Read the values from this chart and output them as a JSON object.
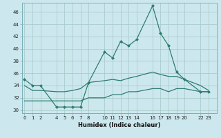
{
  "xlabel": "Humidex (Indice chaleur)",
  "background_color": "#cce8ee",
  "grid_color": "#aacccc",
  "line_color": "#2d7d6e",
  "x_ticks": [
    0,
    1,
    2,
    4,
    5,
    6,
    7,
    8,
    10,
    11,
    12,
    13,
    14,
    16,
    17,
    18,
    19,
    20,
    22,
    23
  ],
  "ylim": [
    29.5,
    47.5
  ],
  "yticks": [
    30,
    32,
    34,
    36,
    38,
    40,
    42,
    44,
    46
  ],
  "xlim": [
    -0.3,
    24.0
  ],
  "line1_x": [
    0,
    1,
    2,
    4,
    5,
    6,
    7,
    8,
    10,
    11,
    12,
    13,
    14,
    16,
    17,
    18,
    19,
    20,
    22,
    23
  ],
  "line1_y": [
    35.0,
    34.0,
    34.0,
    30.5,
    30.5,
    30.5,
    30.5,
    34.5,
    39.5,
    38.5,
    41.2,
    40.5,
    41.5,
    47.0,
    42.5,
    40.5,
    36.2,
    35.0,
    33.0,
    33.0
  ],
  "line2_x": [
    0,
    1,
    2,
    4,
    5,
    6,
    7,
    8,
    10,
    11,
    12,
    13,
    14,
    16,
    17,
    18,
    19,
    20,
    22,
    23
  ],
  "line2_y": [
    34.0,
    33.2,
    33.2,
    33.0,
    33.0,
    33.2,
    33.5,
    34.5,
    34.8,
    35.0,
    34.8,
    35.2,
    35.5,
    36.2,
    35.8,
    35.5,
    35.5,
    35.0,
    34.0,
    33.2
  ],
  "line3_x": [
    0,
    1,
    2,
    4,
    5,
    6,
    7,
    8,
    10,
    11,
    12,
    13,
    14,
    16,
    17,
    18,
    19,
    20,
    22,
    23
  ],
  "line3_y": [
    31.5,
    31.5,
    31.5,
    31.5,
    31.5,
    31.5,
    31.5,
    32.0,
    32.0,
    32.5,
    32.5,
    33.0,
    33.0,
    33.5,
    33.5,
    33.0,
    33.5,
    33.5,
    33.0,
    33.0
  ]
}
